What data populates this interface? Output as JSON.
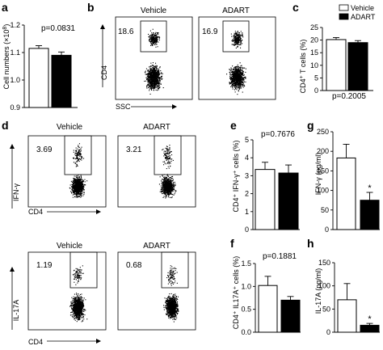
{
  "panels": {
    "a": {
      "label": "a",
      "ylabel_main": "Cell numbers (×10",
      "ylabel_sup": "8",
      "ylabel_end": ")",
      "pvalue": "p=0.0831",
      "chart_data": {
        "type": "bar",
        "categories": [
          "Vehicle",
          "ADART"
        ],
        "values": [
          1.115,
          1.09
        ],
        "errors": [
          0.01,
          0.012
        ],
        "ylim": [
          0.9,
          1.2
        ],
        "ticks": [
          "0.9",
          "1.0",
          "1.1",
          "1.2"
        ],
        "tick_values": [
          0.9,
          1.0,
          1.1,
          1.2
        ]
      }
    },
    "b": {
      "label": "b",
      "titles": [
        "Vehicle",
        "ADART"
      ],
      "percents": [
        "18.6",
        "16.9"
      ],
      "ylabel": "CD4",
      "xlabel": "SSC"
    },
    "c": {
      "label": "c",
      "ylabel_pre": "CD4",
      "ylabel_sup": "+",
      "ylabel_post": " T cells (%)",
      "pvalue": "p=0.2005",
      "legend": [
        "Vehicle",
        "ADART"
      ],
      "chart_data": {
        "type": "bar",
        "categories": [
          "Vehicle",
          "ADART"
        ],
        "values": [
          20.2,
          19.0
        ],
        "errors": [
          0.8,
          0.8
        ],
        "ylim": [
          0,
          25
        ],
        "ticks": [
          "0",
          "5",
          "10",
          "15",
          "20",
          "25"
        ],
        "tick_values": [
          0,
          5,
          10,
          15,
          20,
          25
        ]
      }
    },
    "d": {
      "label": "d",
      "top_titles": [
        "Vehicle",
        "ADART"
      ],
      "top_percents": [
        "3.69",
        "3.21"
      ],
      "top_ylabel": "IFN-γ",
      "top_xlabel": "CD4",
      "bottom_titles": [
        "Vehicle",
        "ADART"
      ],
      "bottom_percents": [
        "1.19",
        "0.68"
      ],
      "bottom_ylabel": "IL-17A",
      "bottom_xlabel": "CD4"
    },
    "e": {
      "label": "e",
      "ylabel": "CD4⁺ IFN-γ⁺ cells (%)",
      "pvalue": "p=0.7676",
      "chart_data": {
        "type": "bar",
        "categories": [
          "Vehicle",
          "ADART"
        ],
        "values": [
          3.35,
          3.15
        ],
        "errors": [
          0.4,
          0.45
        ],
        "ylim": [
          0,
          5
        ],
        "ticks": [
          "0",
          "1",
          "2",
          "3",
          "4",
          "5"
        ],
        "tick_values": [
          0,
          1,
          2,
          3,
          4,
          5
        ]
      }
    },
    "f": {
      "label": "f",
      "ylabel": "CD4⁺ IL17A⁺ cells (%)",
      "pvalue": "p=0.1881",
      "chart_data": {
        "type": "bar",
        "categories": [
          "Vehicle",
          "ADART"
        ],
        "values": [
          1.02,
          0.7
        ],
        "errors": [
          0.2,
          0.08
        ],
        "ylim": [
          0,
          1.5
        ],
        "ticks": [
          "0.0",
          "0.5",
          "1.0",
          "1.5"
        ],
        "tick_values": [
          0.0,
          0.5,
          1.0,
          1.5
        ]
      }
    },
    "g": {
      "label": "g",
      "ylabel": "IFN-γ (pg/ml)",
      "star": "*",
      "chart_data": {
        "type": "bar",
        "categories": [
          "Vehicle",
          "ADART"
        ],
        "values": [
          183,
          75
        ],
        "errors": [
          35,
          20
        ],
        "ylim": [
          0,
          250
        ],
        "ticks": [
          "0",
          "50",
          "100",
          "150",
          "200",
          "250"
        ],
        "tick_values": [
          0,
          50,
          100,
          150,
          200,
          250
        ]
      }
    },
    "h": {
      "label": "h",
      "ylabel": "IL-17A (pg/ml)",
      "star": "*",
      "chart_data": {
        "type": "bar",
        "categories": [
          "Vehicle",
          "ADART"
        ],
        "values": [
          70,
          15
        ],
        "errors": [
          35,
          4
        ],
        "ylim": [
          0,
          150
        ],
        "ticks": [
          "0",
          "50",
          "100",
          "150"
        ],
        "tick_values": [
          0,
          50,
          100,
          150
        ]
      }
    }
  }
}
